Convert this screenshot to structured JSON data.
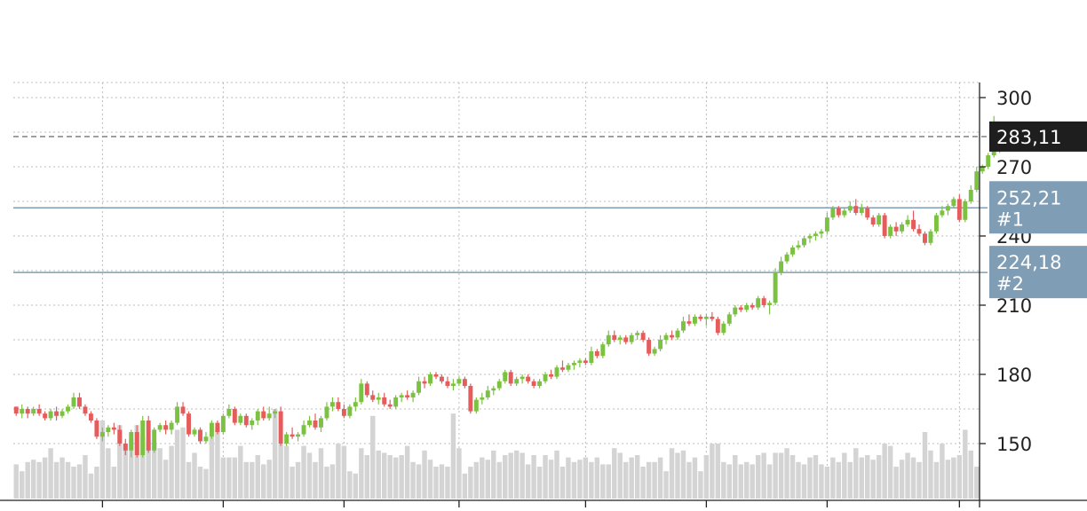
{
  "chart_data": {
    "type": "candlestick",
    "title": "",
    "xlabel": "",
    "ylabel": "",
    "grid": true,
    "up_color": "#7cc242",
    "down_color": "#e55c5c",
    "volume_color": "#d4d4d4",
    "y_axis": {
      "position": "right",
      "range": [
        133,
        303
      ],
      "ticks": [
        150,
        180,
        210,
        240,
        270,
        300
      ]
    },
    "last_price": {
      "value": 283.11,
      "label": "283,11",
      "color": "#1e1e1e"
    },
    "price_lines": [
      {
        "value": 252.21,
        "label": "252,21",
        "id": "#1",
        "color": "#7f9db5"
      },
      {
        "value": 224.18,
        "label": "224,18",
        "id": "#2",
        "color": "#7f9db5"
      }
    ],
    "x_axis": {
      "bars": 168,
      "tick_indices": [
        15,
        36,
        57,
        77,
        99,
        120,
        141,
        164
      ]
    },
    "candles": [
      [
        166,
        166,
        162,
        163
      ],
      [
        163,
        167,
        161,
        165
      ],
      [
        165,
        166,
        161,
        163
      ],
      [
        163,
        166,
        162,
        165
      ],
      [
        165,
        167,
        162,
        163
      ],
      [
        163,
        164,
        160,
        161
      ],
      [
        161,
        165,
        160,
        164
      ],
      [
        164,
        166,
        160,
        162
      ],
      [
        162,
        165,
        161,
        164
      ],
      [
        164,
        167,
        163,
        166
      ],
      [
        166,
        172,
        165,
        170
      ],
      [
        170,
        172,
        165,
        166
      ],
      [
        166,
        167,
        162,
        163
      ],
      [
        163,
        164,
        159,
        160
      ],
      [
        160,
        161,
        152,
        153
      ],
      [
        153,
        157,
        151,
        155
      ],
      [
        155,
        158,
        153,
        157
      ],
      [
        157,
        159,
        154,
        156
      ],
      [
        156,
        158,
        149,
        150
      ],
      [
        150,
        152,
        145,
        147
      ],
      [
        147,
        156,
        144,
        155
      ],
      [
        155,
        158,
        144,
        145
      ],
      [
        145,
        162,
        144,
        160
      ],
      [
        160,
        162,
        146,
        147
      ],
      [
        147,
        157,
        146,
        156
      ],
      [
        156,
        159,
        155,
        158
      ],
      [
        158,
        160,
        154,
        156
      ],
      [
        156,
        160,
        154,
        159
      ],
      [
        159,
        168,
        158,
        166
      ],
      [
        166,
        168,
        162,
        163
      ],
      [
        163,
        164,
        153,
        154
      ],
      [
        154,
        157,
        153,
        156
      ],
      [
        156,
        157,
        150,
        151
      ],
      [
        151,
        155,
        150,
        153
      ],
      [
        153,
        160,
        152,
        159
      ],
      [
        159,
        160,
        154,
        155
      ],
      [
        155,
        163,
        154,
        162
      ],
      [
        162,
        167,
        161,
        165
      ],
      [
        165,
        166,
        158,
        159
      ],
      [
        159,
        163,
        158,
        162
      ],
      [
        162,
        163,
        157,
        158
      ],
      [
        158,
        161,
        156,
        160
      ],
      [
        160,
        165,
        158,
        164
      ],
      [
        164,
        166,
        160,
        161
      ],
      [
        161,
        166,
        160,
        163
      ],
      [
        163,
        165,
        161,
        164
      ],
      [
        164,
        166,
        149,
        150
      ],
      [
        150,
        155,
        149,
        154
      ],
      [
        154,
        157,
        152,
        153
      ],
      [
        153,
        155,
        151,
        154
      ],
      [
        154,
        160,
        153,
        158
      ],
      [
        158,
        162,
        157,
        160
      ],
      [
        160,
        163,
        156,
        157
      ],
      [
        157,
        162,
        155,
        161
      ],
      [
        161,
        168,
        160,
        166
      ],
      [
        166,
        170,
        164,
        168
      ],
      [
        168,
        170,
        164,
        165
      ],
      [
        165,
        167,
        161,
        162
      ],
      [
        162,
        167,
        161,
        166
      ],
      [
        166,
        170,
        164,
        168
      ],
      [
        168,
        178,
        167,
        176
      ],
      [
        176,
        177,
        170,
        171
      ],
      [
        171,
        173,
        168,
        169
      ],
      [
        169,
        172,
        167,
        170
      ],
      [
        170,
        172,
        166,
        167
      ],
      [
        167,
        169,
        165,
        166
      ],
      [
        166,
        171,
        165,
        170
      ],
      [
        170,
        172,
        168,
        171
      ],
      [
        171,
        173,
        169,
        170
      ],
      [
        170,
        173,
        168,
        172
      ],
      [
        172,
        179,
        171,
        177
      ],
      [
        177,
        179,
        174,
        176
      ],
      [
        176,
        181,
        175,
        180
      ],
      [
        180,
        181,
        178,
        179
      ],
      [
        179,
        180,
        176,
        177
      ],
      [
        177,
        179,
        174,
        175
      ],
      [
        175,
        178,
        173,
        176
      ],
      [
        176,
        179,
        175,
        178
      ],
      [
        178,
        179,
        174,
        175
      ],
      [
        175,
        176,
        163,
        164
      ],
      [
        164,
        170,
        163,
        169
      ],
      [
        169,
        172,
        167,
        170
      ],
      [
        170,
        175,
        169,
        173
      ],
      [
        173,
        175,
        171,
        174
      ],
      [
        174,
        178,
        173,
        177
      ],
      [
        177,
        182,
        176,
        181
      ],
      [
        181,
        182,
        175,
        176
      ],
      [
        176,
        179,
        175,
        178
      ],
      [
        178,
        180,
        176,
        179
      ],
      [
        179,
        180,
        176,
        177
      ],
      [
        177,
        178,
        174,
        175
      ],
      [
        175,
        178,
        174,
        177
      ],
      [
        177,
        181,
        176,
        180
      ],
      [
        180,
        182,
        178,
        179
      ],
      [
        179,
        184,
        178,
        183
      ],
      [
        183,
        186,
        181,
        182
      ],
      [
        182,
        185,
        181,
        184
      ],
      [
        184,
        186,
        182,
        185
      ],
      [
        185,
        187,
        183,
        186
      ],
      [
        186,
        187,
        184,
        185
      ],
      [
        185,
        192,
        184,
        190
      ],
      [
        190,
        191,
        187,
        188
      ],
      [
        188,
        194,
        187,
        193
      ],
      [
        193,
        199,
        192,
        197
      ],
      [
        197,
        199,
        194,
        195
      ],
      [
        195,
        197,
        193,
        196
      ],
      [
        196,
        197,
        193,
        194
      ],
      [
        194,
        198,
        193,
        197
      ],
      [
        197,
        199,
        195,
        198
      ],
      [
        198,
        199,
        194,
        195
      ],
      [
        195,
        196,
        188,
        189
      ],
      [
        189,
        192,
        188,
        191
      ],
      [
        191,
        197,
        190,
        195
      ],
      [
        195,
        198,
        193,
        197
      ],
      [
        197,
        199,
        195,
        196
      ],
      [
        196,
        200,
        195,
        199
      ],
      [
        199,
        205,
        198,
        203
      ],
      [
        203,
        206,
        201,
        202
      ],
      [
        202,
        206,
        201,
        205
      ],
      [
        205,
        206,
        203,
        204
      ],
      [
        204,
        206,
        201,
        205
      ],
      [
        205,
        207,
        203,
        204
      ],
      [
        204,
        205,
        197,
        198
      ],
      [
        198,
        203,
        197,
        202
      ],
      [
        202,
        207,
        201,
        206
      ],
      [
        206,
        210,
        205,
        209
      ],
      [
        209,
        210,
        207,
        208
      ],
      [
        208,
        211,
        207,
        210
      ],
      [
        210,
        211,
        208,
        209
      ],
      [
        209,
        214,
        208,
        213
      ],
      [
        213,
        214,
        209,
        210
      ],
      [
        210,
        212,
        206,
        211
      ],
      [
        211,
        226,
        210,
        224
      ],
      [
        224,
        231,
        223,
        229
      ],
      [
        229,
        233,
        228,
        232
      ],
      [
        232,
        236,
        231,
        235
      ],
      [
        235,
        238,
        234,
        236
      ],
      [
        236,
        240,
        235,
        239
      ],
      [
        239,
        241,
        237,
        240
      ],
      [
        240,
        242,
        238,
        241
      ],
      [
        241,
        243,
        239,
        242
      ],
      [
        242,
        250,
        241,
        248
      ],
      [
        248,
        253,
        247,
        252
      ],
      [
        252,
        253,
        248,
        249
      ],
      [
        249,
        252,
        248,
        251
      ],
      [
        251,
        255,
        250,
        253
      ],
      [
        253,
        256,
        249,
        250
      ],
      [
        250,
        254,
        249,
        252
      ],
      [
        252,
        253,
        247,
        248
      ],
      [
        248,
        249,
        244,
        245
      ],
      [
        245,
        250,
        244,
        249
      ],
      [
        249,
        250,
        239,
        240
      ],
      [
        240,
        245,
        239,
        244
      ],
      [
        244,
        246,
        240,
        242
      ],
      [
        242,
        246,
        241,
        245
      ],
      [
        245,
        249,
        244,
        247
      ],
      [
        247,
        251,
        242,
        243
      ],
      [
        243,
        245,
        240,
        241
      ],
      [
        241,
        242,
        236,
        237
      ],
      [
        237,
        243,
        236,
        242
      ],
      [
        242,
        250,
        241,
        249
      ],
      [
        249,
        253,
        248,
        251
      ],
      [
        251,
        254,
        249,
        253
      ],
      [
        253,
        257,
        252,
        256
      ],
      [
        256,
        258,
        246,
        247
      ],
      [
        247,
        256,
        246,
        255
      ],
      [
        255,
        262,
        254,
        260
      ],
      [
        260,
        270,
        259,
        268
      ],
      [
        268,
        271,
        267,
        270
      ],
      [
        270,
        276,
        269,
        275
      ],
      [
        275,
        292,
        274,
        280
      ],
      [
        280,
        284,
        276,
        283.11
      ]
    ],
    "volume": [
      [
        141,
        138,
        142,
        143,
        142,
        144,
        148,
        142,
        144,
        142,
        140,
        141,
        145,
        137,
        140,
        160,
        148,
        140,
        158,
        150,
        152,
        158,
        153,
        151,
        150,
        148,
        143,
        149,
        156,
        157,
        142,
        146,
        140,
        139,
        153,
        157,
        144,
        144,
        144,
        149,
        142,
        142,
        145,
        141,
        143,
        165,
        150,
        149,
        140,
        142,
        149,
        146,
        142,
        148,
        140,
        141,
        150,
        149,
        138,
        137,
        148,
        145,
        162,
        147,
        146,
        145,
        144,
        145,
        149,
        142,
        141,
        147,
        143,
        140,
        141,
        140,
        163,
        148,
        137,
        140,
        142,
        144,
        143,
        147,
        142,
        145,
        146,
        147,
        146,
        141,
        145,
        140,
        145,
        143,
        147,
        140,
        144,
        142,
        143,
        144,
        142,
        144,
        141,
        141,
        148,
        146,
        142,
        144,
        145,
        140,
        142,
        142,
        144,
        138,
        148,
        146,
        147,
        142,
        144,
        138,
        145,
        150,
        150,
        142,
        141,
        145,
        141,
        142,
        141,
        145,
        146,
        141,
        146,
        146,
        148,
        145,
        142,
        141,
        144,
        145,
        141,
        140,
        144,
        142,
        146,
        142,
        148,
        144,
        145,
        143,
        145,
        150,
        149,
        140,
        143,
        146,
        144,
        142,
        155,
        147,
        142,
        150,
        143,
        144,
        145,
        156,
        147,
        140
      ]
    ]
  }
}
